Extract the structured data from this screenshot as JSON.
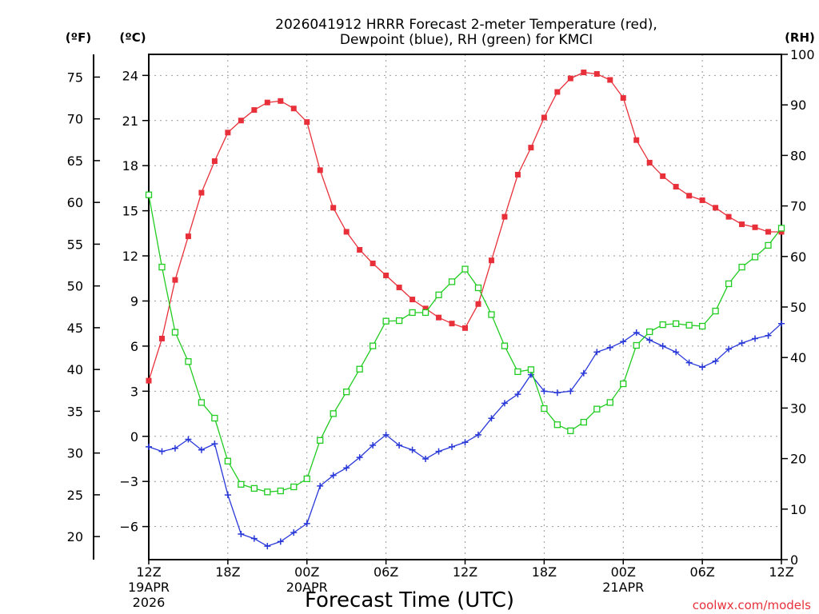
{
  "chart_data": {
    "type": "line",
    "title_line1": "2026041912 HRRR Forecast 2-meter Temperature (red),",
    "title_line2": "Dewpoint (blue), RH (green) for KMCI",
    "xlabel": "Forecast Time (UTC)",
    "credit": "coolwx.com/models",
    "unit_f": "(ºF)",
    "unit_c": "(ºC)",
    "unit_rh": "(RH)",
    "colors": {
      "temperature": "#e8303a",
      "dewpoint": "#2838d8",
      "rh": "#20cc20"
    },
    "x_range": [
      0,
      48
    ],
    "x_ticks": [
      {
        "x": 0,
        "label": "12Z",
        "sub1": "19APR",
        "sub2": "2026"
      },
      {
        "x": 6,
        "label": "18Z",
        "sub1": "",
        "sub2": ""
      },
      {
        "x": 12,
        "label": "00Z",
        "sub1": "20APR",
        "sub2": ""
      },
      {
        "x": 18,
        "label": "06Z",
        "sub1": "",
        "sub2": ""
      },
      {
        "x": 24,
        "label": "12Z",
        "sub1": "",
        "sub2": ""
      },
      {
        "x": 30,
        "label": "18Z",
        "sub1": "",
        "sub2": ""
      },
      {
        "x": 36,
        "label": "00Z",
        "sub1": "21APR",
        "sub2": ""
      },
      {
        "x": 42,
        "label": "06Z",
        "sub1": "",
        "sub2": ""
      },
      {
        "x": 48,
        "label": "12Z",
        "sub1": "",
        "sub2": ""
      }
    ],
    "c_range": [
      -8.2,
      25.4
    ],
    "c_ticks": [
      "-6",
      "-3",
      "0",
      "3",
      "6",
      "9",
      "12",
      "15",
      "18",
      "21",
      "24"
    ],
    "f_ticks": [
      "20",
      "25",
      "30",
      "35",
      "40",
      "45",
      "50",
      "55",
      "60",
      "65",
      "70",
      "75"
    ],
    "rh_range": [
      0,
      100
    ],
    "rh_ticks": [
      "0",
      "10",
      "20",
      "30",
      "40",
      "50",
      "60",
      "70",
      "80",
      "90",
      "100"
    ],
    "series": [
      {
        "name": "Temperature (C)",
        "values": [
          3.7,
          6.5,
          10.4,
          13.3,
          16.2,
          18.3,
          20.2,
          21.0,
          21.7,
          22.2,
          22.3,
          21.8,
          20.9,
          17.7,
          15.2,
          13.6,
          12.4,
          11.5,
          10.7,
          9.9,
          9.1,
          8.5,
          7.9,
          7.5,
          7.2,
          8.8,
          11.7,
          14.6,
          17.4,
          19.2,
          21.2,
          22.9,
          23.8,
          24.2,
          24.1,
          23.7,
          22.5,
          19.7,
          18.2,
          17.3,
          16.6,
          16.0,
          15.7,
          15.2,
          14.6,
          14.1,
          13.9,
          13.6,
          13.6
        ]
      },
      {
        "name": "Dewpoint (C)",
        "values": [
          -0.7,
          -1.0,
          -0.8,
          -0.2,
          -0.9,
          -0.5,
          -3.9,
          -6.5,
          -6.8,
          -7.3,
          -7.0,
          -6.4,
          -5.8,
          -3.3,
          -2.6,
          -2.1,
          -1.4,
          -0.6,
          0.1,
          -0.6,
          -0.9,
          -1.5,
          -1.0,
          -0.7,
          -0.4,
          0.1,
          1.2,
          2.2,
          2.8,
          4.1,
          3.0,
          2.9,
          3.0,
          4.2,
          5.6,
          5.9,
          6.3,
          6.9,
          6.4,
          6.0,
          5.6,
          4.9,
          4.6,
          5.0,
          5.8,
          6.2,
          6.5,
          6.7,
          7.5
        ]
      },
      {
        "name": "RH (%)",
        "values": [
          72.2,
          57.9,
          45.0,
          39.2,
          31.1,
          28.0,
          19.5,
          14.9,
          14.1,
          13.4,
          13.6,
          14.4,
          16.0,
          23.6,
          28.9,
          33.2,
          37.7,
          42.3,
          47.2,
          47.3,
          48.9,
          48.9,
          52.4,
          55.0,
          57.5,
          53.8,
          48.5,
          42.3,
          37.2,
          37.6,
          29.9,
          26.7,
          25.5,
          27.2,
          29.8,
          31.1,
          34.8,
          42.4,
          45.1,
          46.5,
          46.7,
          46.4,
          46.2,
          49.2,
          54.6,
          57.9,
          59.9,
          62.2,
          65.6
        ]
      }
    ]
  }
}
